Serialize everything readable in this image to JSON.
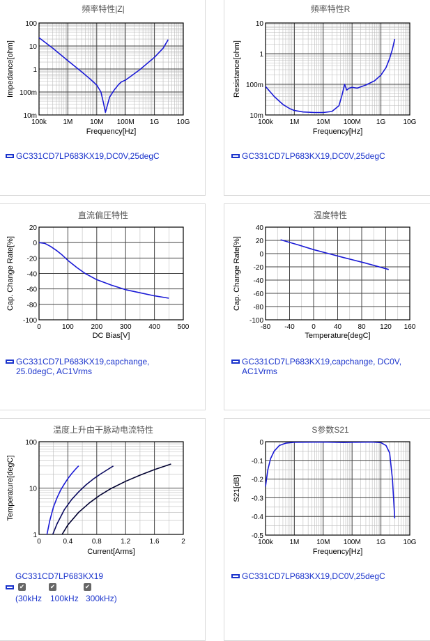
{
  "chart_data": [
    {
      "type": "line",
      "title": "頻率特性|Z|",
      "xlabel": "Frequency[Hz]",
      "ylabel": "Impedance[ohm]",
      "xscale": "log",
      "yscale": "log",
      "xlim": [
        100000,
        10000000000
      ],
      "ylim": [
        0.01,
        100
      ],
      "xticks": [
        {
          "v": 100000,
          "label": "100k"
        },
        {
          "v": 1000000,
          "label": "1M"
        },
        {
          "v": 10000000,
          "label": "10M"
        },
        {
          "v": 100000000,
          "label": "100M"
        },
        {
          "v": 1000000000,
          "label": "1G"
        },
        {
          "v": 10000000000,
          "label": "10G"
        }
      ],
      "yticks": [
        {
          "v": 0.01,
          "label": "10m"
        },
        {
          "v": 0.1,
          "label": "100m"
        },
        {
          "v": 1,
          "label": "1"
        },
        {
          "v": 10,
          "label": "10"
        },
        {
          "v": 100,
          "label": "100"
        }
      ],
      "grid": true,
      "series": [
        {
          "name": "GC331CD7LP683KX19,DC0V,25degC",
          "color": "#1a1ad6",
          "x": [
            100000,
            300000,
            1000000,
            3000000,
            6000000,
            10000000,
            14000000,
            17000000,
            20000000,
            28000000,
            40000000,
            55000000,
            70000000,
            100000000,
            300000000,
            1000000000,
            2000000000,
            3000000000
          ],
          "y": [
            23,
            8,
            2.3,
            0.75,
            0.36,
            0.2,
            0.1,
            0.035,
            0.013,
            0.06,
            0.12,
            0.2,
            0.27,
            0.33,
            0.9,
            3.2,
            8,
            19
          ]
        }
      ]
    },
    {
      "type": "line",
      "title": "頻率特性R",
      "xlabel": "Frequency[Hz]",
      "ylabel": "Resistance[ohm]",
      "xscale": "log",
      "yscale": "log",
      "xlim": [
        100000,
        10000000000
      ],
      "ylim": [
        0.01,
        10
      ],
      "xticks": [
        {
          "v": 100000,
          "label": "100k"
        },
        {
          "v": 1000000,
          "label": "1M"
        },
        {
          "v": 10000000,
          "label": "10M"
        },
        {
          "v": 100000000,
          "label": "100M"
        },
        {
          "v": 1000000000,
          "label": "1G"
        },
        {
          "v": 10000000000,
          "label": "10G"
        }
      ],
      "yticks": [
        {
          "v": 0.01,
          "label": "10m"
        },
        {
          "v": 0.1,
          "label": "100m"
        },
        {
          "v": 1,
          "label": "1"
        },
        {
          "v": 10,
          "label": "10"
        }
      ],
      "grid": true,
      "series": [
        {
          "name": "GC331CD7LP683KX19,DC0V,25degC",
          "color": "#1a1ad6",
          "x": [
            100000,
            200000,
            400000,
            700000,
            1000000,
            2000000,
            5000000,
            10000000,
            20000000,
            35000000,
            45000000,
            55000000,
            65000000,
            80000000,
            100000000,
            150000000,
            300000000,
            600000000,
            1000000000,
            1500000000,
            2000000000,
            2500000000,
            3000000000
          ],
          "y": [
            0.085,
            0.04,
            0.022,
            0.016,
            0.014,
            0.0125,
            0.012,
            0.012,
            0.013,
            0.02,
            0.045,
            0.1,
            0.065,
            0.075,
            0.08,
            0.075,
            0.095,
            0.13,
            0.2,
            0.35,
            0.7,
            1.4,
            3
          ]
        }
      ]
    },
    {
      "type": "line",
      "title": "直流偏圧特性",
      "xlabel": "DC Bias[V]",
      "ylabel": "Cap. Change Rate[%]",
      "xlim": [
        0,
        500
      ],
      "ylim": [
        -100,
        20
      ],
      "xticks": [
        {
          "v": 0,
          "label": "0"
        },
        {
          "v": 100,
          "label": "100"
        },
        {
          "v": 200,
          "label": "200"
        },
        {
          "v": 300,
          "label": "300"
        },
        {
          "v": 400,
          "label": "400"
        },
        {
          "v": 500,
          "label": "500"
        }
      ],
      "yticks": [
        {
          "v": 20,
          "label": "20"
        },
        {
          "v": 0,
          "label": "0"
        },
        {
          "v": -20,
          "label": "-20"
        },
        {
          "v": -40,
          "label": "-40"
        },
        {
          "v": -60,
          "label": "-60"
        },
        {
          "v": -80,
          "label": "-80"
        },
        {
          "v": -100,
          "label": "-100"
        }
      ],
      "grid": true,
      "series": [
        {
          "name": "GC331CD7LP683KX19,capchange,25.0degC, AC1Vrms",
          "color": "#1a1ad6",
          "x": [
            0,
            20,
            40,
            60,
            80,
            100,
            130,
            160,
            200,
            250,
            300,
            350,
            400,
            450
          ],
          "y": [
            0,
            -1,
            -5,
            -10,
            -16,
            -23,
            -32,
            -40,
            -48,
            -55,
            -61,
            -65,
            -69,
            -72
          ]
        }
      ]
    },
    {
      "type": "line",
      "title": "温度特性",
      "xlabel": "Temperature[degC]",
      "ylabel": "Cap. Change Rate[%]",
      "xlim": [
        -80,
        160
      ],
      "ylim": [
        -100,
        40
      ],
      "xticks": [
        {
          "v": -80,
          "label": "-80"
        },
        {
          "v": -40,
          "label": "-40"
        },
        {
          "v": 0,
          "label": "0"
        },
        {
          "v": 40,
          "label": "40"
        },
        {
          "v": 80,
          "label": "80"
        },
        {
          "v": 120,
          "label": "120"
        },
        {
          "v": 160,
          "label": "160"
        }
      ],
      "yticks": [
        {
          "v": 40,
          "label": "40"
        },
        {
          "v": 20,
          "label": "20"
        },
        {
          "v": 0,
          "label": "0"
        },
        {
          "v": -20,
          "label": "-20"
        },
        {
          "v": -40,
          "label": "-40"
        },
        {
          "v": -60,
          "label": "-60"
        },
        {
          "v": -80,
          "label": "-80"
        },
        {
          "v": -100,
          "label": "-100"
        }
      ],
      "grid": true,
      "series": [
        {
          "name": "GC331CD7LP683KX19,capchange, DC0V, AC1Vrms",
          "color": "#1a1ad6",
          "x": [
            -55,
            -25,
            0,
            25,
            50,
            85,
            125
          ],
          "y": [
            21,
            13,
            6,
            0,
            -6,
            -14,
            -24
          ]
        }
      ]
    },
    {
      "type": "line",
      "title": "温度上升由干脉动电流特性",
      "xlabel": "Current[Arms]",
      "ylabel": "Temperature[degC]",
      "yscale": "log",
      "xlim": [
        0,
        2
      ],
      "ylim": [
        1,
        100
      ],
      "xticks": [
        {
          "v": 0,
          "label": "0"
        },
        {
          "v": 0.4,
          "label": "0.4"
        },
        {
          "v": 0.8,
          "label": "0.8"
        },
        {
          "v": 1.2,
          "label": "1.2"
        },
        {
          "v": 1.6,
          "label": "1.6"
        },
        {
          "v": 2,
          "label": "2"
        }
      ],
      "yticks": [
        {
          "v": 1,
          "label": "1"
        },
        {
          "v": 10,
          "label": "10"
        },
        {
          "v": 100,
          "label": "100"
        }
      ],
      "grid": true,
      "series": [
        {
          "name": "30kHz",
          "color": "#1a1ad6",
          "x": [
            0.11,
            0.15,
            0.2,
            0.25,
            0.3,
            0.35,
            0.4,
            0.45,
            0.5,
            0.55
          ],
          "y": [
            1,
            2,
            3.9,
            6.2,
            9,
            12.2,
            16,
            20.3,
            25,
            30.2
          ]
        },
        {
          "name": "100kHz",
          "color": "#0a0a60",
          "x": [
            0.19,
            0.25,
            0.35,
            0.45,
            0.55,
            0.65,
            0.75,
            0.85,
            0.95,
            1.03
          ],
          "y": [
            1,
            1.7,
            3.4,
            5.6,
            8.3,
            11.7,
            15.6,
            20,
            25,
            30
          ]
        },
        {
          "name": "300kHz",
          "color": "#000030",
          "x": [
            0.32,
            0.4,
            0.55,
            0.7,
            0.85,
            1.0,
            1.2,
            1.4,
            1.6,
            1.83
          ],
          "y": [
            1,
            1.6,
            3,
            4.8,
            7.1,
            9.8,
            14,
            19,
            25,
            33
          ]
        }
      ]
    },
    {
      "type": "line",
      "title": "S参数S21",
      "xlabel": "Frequency[Hz]",
      "ylabel": "S21[dB]",
      "xscale": "log",
      "xlim": [
        100000,
        10000000000
      ],
      "ylim": [
        -0.5,
        0
      ],
      "xticks": [
        {
          "v": 100000,
          "label": "100k"
        },
        {
          "v": 1000000,
          "label": "1M"
        },
        {
          "v": 10000000,
          "label": "10M"
        },
        {
          "v": 100000000,
          "label": "100M"
        },
        {
          "v": 1000000000,
          "label": "1G"
        },
        {
          "v": 10000000000,
          "label": "10G"
        }
      ],
      "yticks": [
        {
          "v": 0,
          "label": "0"
        },
        {
          "v": -0.1,
          "label": "-0.1"
        },
        {
          "v": -0.2,
          "label": "-0.2"
        },
        {
          "v": -0.3,
          "label": "-0.3"
        },
        {
          "v": -0.4,
          "label": "-0.4"
        },
        {
          "v": -0.5,
          "label": "-0.5"
        }
      ],
      "grid": true,
      "series": [
        {
          "name": "GC331CD7LP683KX19,DC0V,25degC",
          "color": "#1a1ad6",
          "x": [
            100000,
            120000,
            150000,
            200000,
            300000,
            500000,
            1000000,
            10000000,
            50000000,
            100000000,
            500000000,
            1000000000,
            1500000000,
            2000000000,
            2500000000,
            3000000000
          ],
          "y": [
            -0.24,
            -0.15,
            -0.09,
            -0.05,
            -0.02,
            -0.008,
            -0.003,
            -0.002,
            -0.004,
            -0.003,
            -0.002,
            -0.005,
            -0.02,
            -0.06,
            -0.2,
            -0.41
          ]
        }
      ]
    }
  ],
  "legends": [
    {
      "text": "GC331CD7LP683KX19,DC0V,25degC"
    },
    {
      "text": "GC331CD7LP683KX19,DC0V,25degC"
    },
    {
      "line1": "GC331CD7LP683KX19,capchange,",
      "line2": "25.0degC, AC1Vrms"
    },
    {
      "line1": "GC331CD7LP683KX19,capchange, DC0V,",
      "line2": "AC1Vrms"
    },
    {
      "text": "GC331CD7LP683KX19",
      "checks": [
        "(30kHz",
        "100kHz",
        "300kHz)"
      ]
    },
    {
      "text": "GC331CD7LP683KX19,DC0V,25degC"
    }
  ],
  "colors": {
    "line": "#1a1ad6",
    "legend": "#1a33cc",
    "grid_major": "#444444",
    "grid_minor": "#bbbbbb"
  }
}
